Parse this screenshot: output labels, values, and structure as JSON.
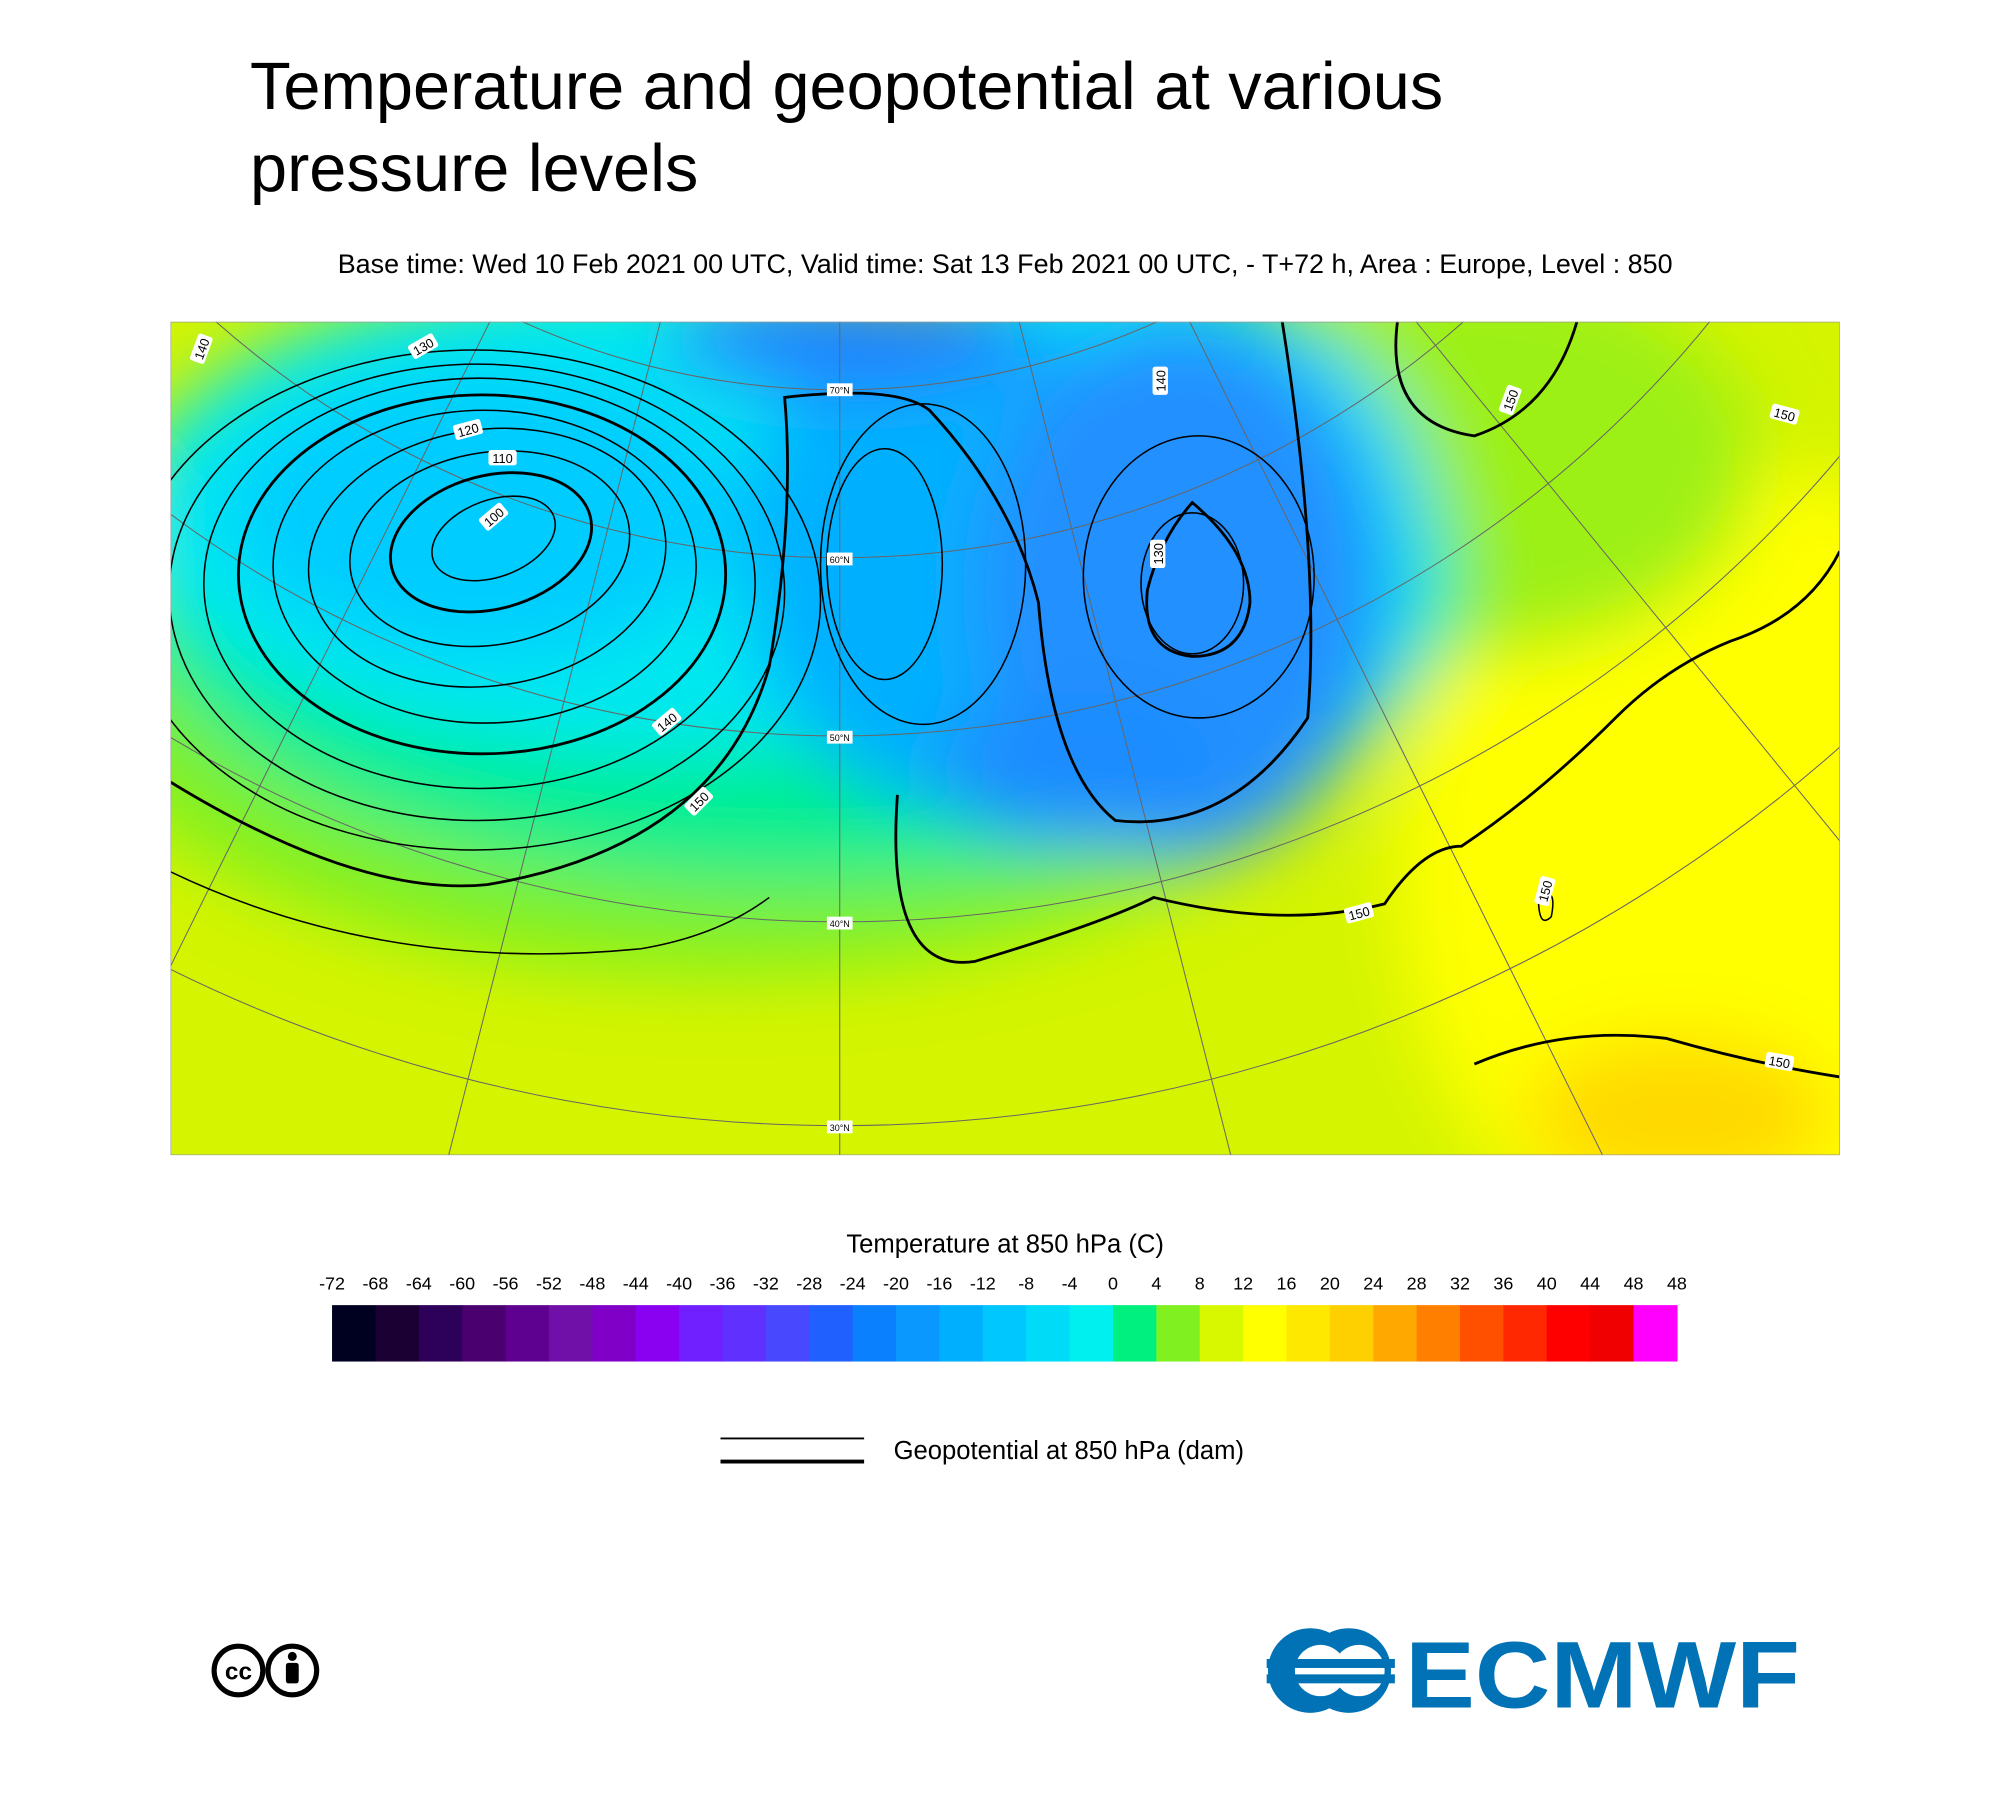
{
  "header": {
    "title_lines": [
      "Temperature and geopotential at various",
      "pressure levels"
    ],
    "subtitle": "Base time: Wed 10 Feb 2021 00 UTC, Valid time: Sat 13 Feb 2021 00 UTC, - T+72 h, Area : Europe, Level : 850"
  },
  "map": {
    "contour_labels": [
      "140",
      "130",
      "120",
      "110",
      "100",
      "140",
      "150",
      "140",
      "130",
      "150",
      "150",
      "150",
      "150",
      "150"
    ],
    "latitude_labels": [
      "70°N",
      "60°N",
      "50°N",
      "40°N",
      "30°N"
    ]
  },
  "colorbar": {
    "title": "Temperature at 850 hPa (C)",
    "labels": [
      "-72",
      "-68",
      "-64",
      "-60",
      "-56",
      "-52",
      "-48",
      "-44",
      "-40",
      "-36",
      "-32",
      "-28",
      "-24",
      "-20",
      "-16",
      "-12",
      "-8",
      "-4",
      "0",
      "4",
      "8",
      "12",
      "16",
      "20",
      "24",
      "28",
      "32",
      "36",
      "40",
      "44",
      "48",
      "48"
    ],
    "colors": [
      "#000020",
      "#1a0033",
      "#2d005a",
      "#4b0070",
      "#5e0090",
      "#7010a8",
      "#8000c8",
      "#8a00f0",
      "#7020ff",
      "#6030ff",
      "#4848ff",
      "#2060ff",
      "#0a80ff",
      "#0a98ff",
      "#00b0ff",
      "#00c8ff",
      "#00dcf8",
      "#00f0f0",
      "#00f080",
      "#80f020",
      "#d8f800",
      "#ffff00",
      "#ffe800",
      "#ffd000",
      "#ffa800",
      "#ff8000",
      "#ff5000",
      "#ff2800",
      "#ff0000",
      "#f00000",
      "#ff00ff"
    ]
  },
  "legend": {
    "label": "Geopotential at 850 hPa (dam)"
  },
  "logo": {
    "cc": "cc",
    "name": "ECMWF"
  }
}
